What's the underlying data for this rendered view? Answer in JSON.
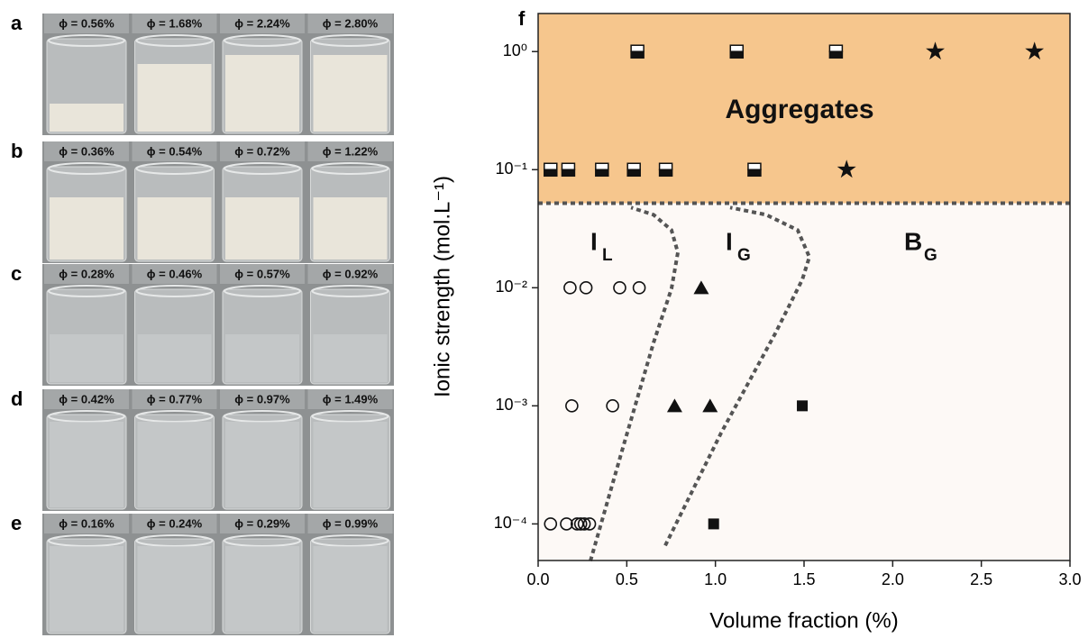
{
  "panels": [
    {
      "label": "a",
      "vials": [
        "ϕ = 0.56%",
        "ϕ = 1.68%",
        "ϕ = 2.24%",
        "ϕ = 2.80%"
      ]
    },
    {
      "label": "b",
      "vials": [
        "ϕ = 0.36%",
        "ϕ = 0.54%",
        "ϕ = 0.72%",
        "ϕ = 1.22%"
      ]
    },
    {
      "label": "c",
      "vials": [
        "ϕ = 0.28%",
        "ϕ = 0.46%",
        "ϕ = 0.57%",
        "ϕ = 0.92%"
      ]
    },
    {
      "label": "d",
      "vials": [
        "ϕ = 0.42%",
        "ϕ = 0.77%",
        "ϕ = 0.97%",
        "ϕ = 1.49%"
      ]
    },
    {
      "label": "e",
      "vials": [
        "ϕ = 0.16%",
        "ϕ = 0.24%",
        "ϕ = 0.29%",
        "ϕ = 0.99%"
      ]
    }
  ],
  "chart_data": {
    "type": "scatter",
    "panel_label": "f",
    "x_label": "Volume fraction (%)",
    "y_label": "Ionic strength (mol.L⁻¹)",
    "xlim": [
      0,
      3
    ],
    "ylim": [
      4.9e-05,
      2.1
    ],
    "log_y": true,
    "xticks": [
      {
        "value": 0,
        "label": "0.0"
      },
      {
        "value": 0.5,
        "label": "0.5"
      },
      {
        "value": 1,
        "label": "1.0"
      },
      {
        "value": 1.5,
        "label": "1.5"
      },
      {
        "value": 2,
        "label": "2.0"
      },
      {
        "value": 2.5,
        "label": "2.5"
      },
      {
        "value": 3,
        "label": "3.0"
      }
    ],
    "yticks": [
      {
        "value": 0.0001,
        "label": "10⁻⁴"
      },
      {
        "value": 0.001,
        "label": "10⁻³"
      },
      {
        "value": 0.01,
        "label": "10⁻²"
      },
      {
        "value": 0.1,
        "label": "10⁻¹"
      },
      {
        "value": 1,
        "label": "10⁰"
      }
    ],
    "aggregate_boundary": 0.052,
    "aggregate_color": "#f6c68d",
    "annotations": {
      "aggregates": "Aggregates",
      "il": {
        "text": "I",
        "sub": "L"
      },
      "ig": {
        "text": "I",
        "sub": "G"
      },
      "bg": {
        "text": "B",
        "sub": "G"
      }
    },
    "series": [
      {
        "marker": "square-half",
        "color": "#111111",
        "x": [
          0.56,
          1.12,
          1.68,
          0.07,
          0.17,
          0.36,
          0.54,
          0.72,
          1.22
        ],
        "values": [
          1,
          1,
          1,
          0.1,
          0.1,
          0.1,
          0.1,
          0.1,
          0.1
        ]
      },
      {
        "marker": "star",
        "color": "#111111",
        "x": [
          2.24,
          2.8,
          1.74
        ],
        "values": [
          1,
          1,
          0.1
        ]
      },
      {
        "marker": "circle-open",
        "color": "#111111",
        "x": [
          0.18,
          0.27,
          0.46,
          0.57,
          0.19,
          0.42,
          0.07,
          0.16,
          0.22,
          0.24,
          0.26,
          0.29
        ],
        "values": [
          0.01,
          0.01,
          0.01,
          0.01,
          0.001,
          0.001,
          0.0001,
          0.0001,
          0.0001,
          0.0001,
          0.0001,
          0.0001
        ]
      },
      {
        "marker": "triangle",
        "color": "#111111",
        "x": [
          0.92,
          0.77,
          0.97
        ],
        "values": [
          0.01,
          0.001,
          0.001
        ]
      },
      {
        "marker": "square",
        "color": "#111111",
        "x": [
          1.49,
          0.99
        ],
        "values": [
          0.001,
          0.0001
        ]
      }
    ],
    "boundary_curves": [
      {
        "x": [
          0.295,
          0.473,
          0.651,
          0.752,
          0.788,
          0.752,
          0.651,
          0.524
        ],
        "values": [
          4.86e-05,
          0.000415,
          0.00342,
          0.0098,
          0.0199,
          0.0308,
          0.0415,
          0.0478
        ]
      },
      {
        "x": [
          0.717,
          1.032,
          1.337,
          1.49,
          1.53,
          1.464,
          1.286,
          1.083
        ],
        "values": [
          6.56e-05,
          0.00059,
          0.00408,
          0.0117,
          0.0182,
          0.0308,
          0.0415,
          0.0478
        ]
      }
    ]
  }
}
